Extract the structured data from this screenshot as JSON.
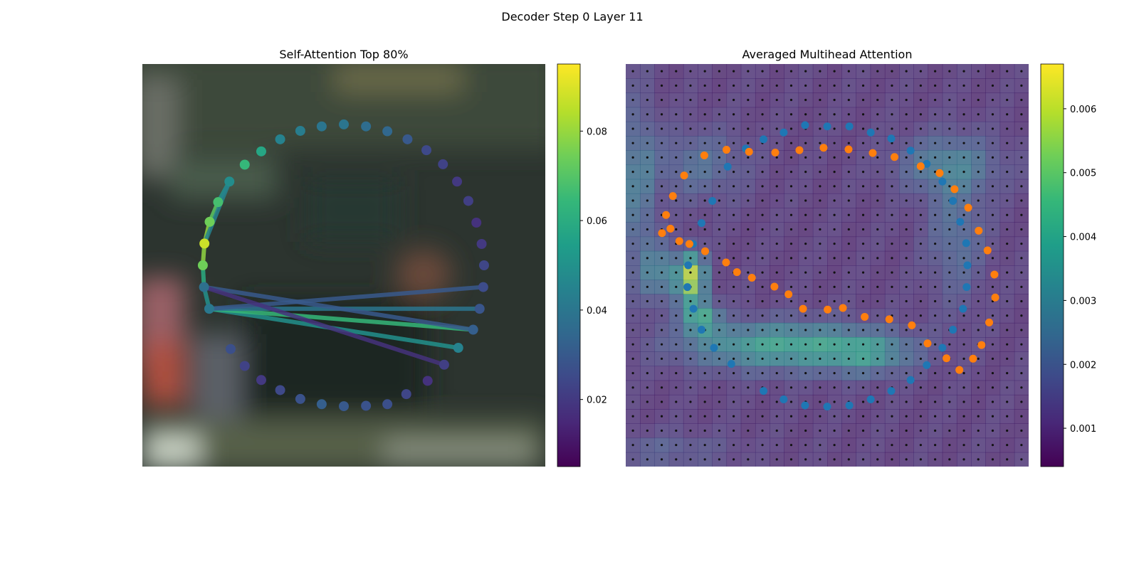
{
  "figure": {
    "suptitle": "Decoder Step 0 Layer 11"
  },
  "colors": {
    "viridis": [
      "#440154",
      "#482878",
      "#3e4989",
      "#31688e",
      "#26828e",
      "#1f9e89",
      "#35b779",
      "#6ece58",
      "#b5de2b",
      "#fde725"
    ],
    "blue_points": "#1f77b4",
    "orange_points": "#ff7f0e",
    "grid_dots": "#111111"
  },
  "chart_data": [
    {
      "type": "scatter",
      "title": "Self-Attention Top 80%",
      "background": "blurred photo",
      "axes_visible": false,
      "colorbar": {
        "vmin": 0.005,
        "vmax": 0.095,
        "ticks": [
          "0.02",
          "0.04",
          "0.06",
          "0.08"
        ],
        "tick_values": [
          0.02,
          0.04,
          0.06,
          0.08
        ]
      },
      "points": [
        {
          "x": 0.5,
          "y": 0.85,
          "v": 0.04
        },
        {
          "x": 0.555,
          "y": 0.845,
          "v": 0.037
        },
        {
          "x": 0.608,
          "y": 0.833,
          "v": 0.035
        },
        {
          "x": 0.658,
          "y": 0.813,
          "v": 0.03
        },
        {
          "x": 0.705,
          "y": 0.786,
          "v": 0.025
        },
        {
          "x": 0.746,
          "y": 0.751,
          "v": 0.023
        },
        {
          "x": 0.781,
          "y": 0.708,
          "v": 0.02
        },
        {
          "x": 0.809,
          "y": 0.66,
          "v": 0.022
        },
        {
          "x": 0.829,
          "y": 0.606,
          "v": 0.018
        },
        {
          "x": 0.842,
          "y": 0.553,
          "v": 0.02
        },
        {
          "x": 0.848,
          "y": 0.5,
          "v": 0.024
        },
        {
          "x": 0.846,
          "y": 0.446,
          "v": 0.026
        },
        {
          "x": 0.837,
          "y": 0.392,
          "v": 0.029
        },
        {
          "x": 0.821,
          "y": 0.34,
          "v": 0.032
        },
        {
          "x": 0.784,
          "y": 0.295,
          "v": 0.045
        },
        {
          "x": 0.749,
          "y": 0.253,
          "v": 0.022
        },
        {
          "x": 0.708,
          "y": 0.213,
          "v": 0.018
        },
        {
          "x": 0.655,
          "y": 0.18,
          "v": 0.024
        },
        {
          "x": 0.608,
          "y": 0.155,
          "v": 0.027
        },
        {
          "x": 0.555,
          "y": 0.151,
          "v": 0.028
        },
        {
          "x": 0.5,
          "y": 0.15,
          "v": 0.03
        },
        {
          "x": 0.445,
          "y": 0.155,
          "v": 0.032
        },
        {
          "x": 0.392,
          "y": 0.168,
          "v": 0.028
        },
        {
          "x": 0.342,
          "y": 0.19,
          "v": 0.025
        },
        {
          "x": 0.295,
          "y": 0.215,
          "v": 0.02
        },
        {
          "x": 0.254,
          "y": 0.25,
          "v": 0.023
        },
        {
          "x": 0.219,
          "y": 0.292,
          "v": 0.027
        },
        {
          "x": 0.166,
          "y": 0.392,
          "v": 0.041
        },
        {
          "x": 0.153,
          "y": 0.446,
          "v": 0.038
        },
        {
          "x": 0.15,
          "y": 0.5,
          "v": 0.075
        },
        {
          "x": 0.154,
          "y": 0.554,
          "v": 0.088
        },
        {
          "x": 0.167,
          "y": 0.608,
          "v": 0.075
        },
        {
          "x": 0.188,
          "y": 0.657,
          "v": 0.068
        },
        {
          "x": 0.216,
          "y": 0.708,
          "v": 0.049
        },
        {
          "x": 0.254,
          "y": 0.75,
          "v": 0.065
        },
        {
          "x": 0.295,
          "y": 0.783,
          "v": 0.058
        },
        {
          "x": 0.342,
          "y": 0.813,
          "v": 0.045
        },
        {
          "x": 0.392,
          "y": 0.834,
          "v": 0.043
        },
        {
          "x": 0.445,
          "y": 0.845,
          "v": 0.04
        }
      ],
      "edges": [
        {
          "from": 27,
          "to": 14,
          "v": 0.05
        },
        {
          "from": 27,
          "to": 13,
          "v": 0.065
        },
        {
          "from": 27,
          "to": 12,
          "v": 0.04
        },
        {
          "from": 27,
          "to": 11,
          "v": 0.03
        },
        {
          "from": 28,
          "to": 13,
          "v": 0.03
        },
        {
          "from": 28,
          "to": 15,
          "v": 0.018
        },
        {
          "from": 27,
          "to": 28,
          "v": 0.05
        },
        {
          "from": 28,
          "to": 29,
          "v": 0.06
        },
        {
          "from": 29,
          "to": 30,
          "v": 0.08
        },
        {
          "from": 30,
          "to": 31,
          "v": 0.08
        },
        {
          "from": 31,
          "to": 32,
          "v": 0.072
        },
        {
          "from": 32,
          "to": 33,
          "v": 0.05
        },
        {
          "from": 30,
          "to": 33,
          "v": 0.045
        }
      ]
    },
    {
      "type": "heatmap",
      "title": "Averaged Multihead Attention",
      "axes_visible": false,
      "colorbar": {
        "vmin": 0.0004,
        "vmax": 0.0067,
        "ticks": [
          "0.001",
          "0.002",
          "0.003",
          "0.004",
          "0.005",
          "0.006"
        ],
        "tick_values": [
          0.001,
          0.002,
          0.003,
          0.004,
          0.005,
          0.006
        ]
      },
      "grid": {
        "rows": 28,
        "cols": 28
      },
      "hotspots": [
        {
          "x": 0.16,
          "y": 0.53,
          "sx": 0.025,
          "sy": 0.04,
          "v": 0.0062
        },
        {
          "x": 0.185,
          "y": 0.63,
          "sx": 0.03,
          "sy": 0.03,
          "v": 0.0042
        },
        {
          "x": 0.38,
          "y": 0.7,
          "sx": 0.16,
          "sy": 0.04,
          "v": 0.004
        },
        {
          "x": 0.6,
          "y": 0.72,
          "sx": 0.08,
          "sy": 0.035,
          "v": 0.003
        },
        {
          "x": 0.08,
          "y": 0.52,
          "sx": 0.03,
          "sy": 0.05,
          "v": 0.0028
        },
        {
          "x": 0.82,
          "y": 0.42,
          "sx": 0.05,
          "sy": 0.12,
          "v": 0.0022
        },
        {
          "x": 0.8,
          "y": 0.25,
          "sx": 0.09,
          "sy": 0.05,
          "v": 0.0026
        },
        {
          "x": 0.18,
          "y": 0.25,
          "sx": 0.08,
          "sy": 0.06,
          "v": 0.0022
        },
        {
          "x": 0.09,
          "y": 0.96,
          "sx": 0.12,
          "sy": 0.03,
          "v": 0.0018
        },
        {
          "x": 0.03,
          "y": 0.3,
          "sx": 0.03,
          "sy": 0.15,
          "v": 0.0026
        }
      ],
      "blue_points": [
        {
          "x": 0.5,
          "y": 0.845
        },
        {
          "x": 0.555,
          "y": 0.845
        },
        {
          "x": 0.608,
          "y": 0.83
        },
        {
          "x": 0.659,
          "y": 0.815
        },
        {
          "x": 0.707,
          "y": 0.785
        },
        {
          "x": 0.747,
          "y": 0.752
        },
        {
          "x": 0.786,
          "y": 0.708
        },
        {
          "x": 0.812,
          "y": 0.66
        },
        {
          "x": 0.83,
          "y": 0.608
        },
        {
          "x": 0.845,
          "y": 0.555
        },
        {
          "x": 0.848,
          "y": 0.5
        },
        {
          "x": 0.846,
          "y": 0.446
        },
        {
          "x": 0.837,
          "y": 0.392
        },
        {
          "x": 0.812,
          "y": 0.34
        },
        {
          "x": 0.786,
          "y": 0.295
        },
        {
          "x": 0.747,
          "y": 0.252
        },
        {
          "x": 0.707,
          "y": 0.215
        },
        {
          "x": 0.659,
          "y": 0.188
        },
        {
          "x": 0.608,
          "y": 0.167
        },
        {
          "x": 0.555,
          "y": 0.152
        },
        {
          "x": 0.5,
          "y": 0.149
        },
        {
          "x": 0.445,
          "y": 0.152
        },
        {
          "x": 0.392,
          "y": 0.167
        },
        {
          "x": 0.342,
          "y": 0.188
        },
        {
          "x": 0.262,
          "y": 0.255
        },
        {
          "x": 0.219,
          "y": 0.295
        },
        {
          "x": 0.188,
          "y": 0.34
        },
        {
          "x": 0.168,
          "y": 0.392
        },
        {
          "x": 0.153,
          "y": 0.446
        },
        {
          "x": 0.155,
          "y": 0.5
        },
        {
          "x": 0.167,
          "y": 0.553
        },
        {
          "x": 0.188,
          "y": 0.605
        },
        {
          "x": 0.215,
          "y": 0.66
        },
        {
          "x": 0.253,
          "y": 0.745
        },
        {
          "x": 0.298,
          "y": 0.79
        },
        {
          "x": 0.342,
          "y": 0.813
        },
        {
          "x": 0.392,
          "y": 0.83
        },
        {
          "x": 0.445,
          "y": 0.848
        }
      ],
      "orange_points": [
        {
          "x": 0.09,
          "y": 0.58
        },
        {
          "x": 0.1,
          "y": 0.625
        },
        {
          "x": 0.117,
          "y": 0.672
        },
        {
          "x": 0.145,
          "y": 0.723
        },
        {
          "x": 0.195,
          "y": 0.773
        },
        {
          "x": 0.25,
          "y": 0.787
        },
        {
          "x": 0.306,
          "y": 0.782
        },
        {
          "x": 0.371,
          "y": 0.78
        },
        {
          "x": 0.431,
          "y": 0.786
        },
        {
          "x": 0.491,
          "y": 0.792
        },
        {
          "x": 0.553,
          "y": 0.788
        },
        {
          "x": 0.613,
          "y": 0.779
        },
        {
          "x": 0.667,
          "y": 0.769
        },
        {
          "x": 0.732,
          "y": 0.746
        },
        {
          "x": 0.779,
          "y": 0.729
        },
        {
          "x": 0.816,
          "y": 0.689
        },
        {
          "x": 0.85,
          "y": 0.643
        },
        {
          "x": 0.876,
          "y": 0.586
        },
        {
          "x": 0.898,
          "y": 0.537
        },
        {
          "x": 0.915,
          "y": 0.477
        },
        {
          "x": 0.917,
          "y": 0.42
        },
        {
          "x": 0.902,
          "y": 0.358
        },
        {
          "x": 0.883,
          "y": 0.302
        },
        {
          "x": 0.862,
          "y": 0.268
        },
        {
          "x": 0.828,
          "y": 0.24
        },
        {
          "x": 0.796,
          "y": 0.269
        },
        {
          "x": 0.749,
          "y": 0.306
        },
        {
          "x": 0.71,
          "y": 0.351
        },
        {
          "x": 0.654,
          "y": 0.366
        },
        {
          "x": 0.593,
          "y": 0.372
        },
        {
          "x": 0.539,
          "y": 0.394
        },
        {
          "x": 0.501,
          "y": 0.39
        },
        {
          "x": 0.44,
          "y": 0.392
        },
        {
          "x": 0.404,
          "y": 0.428
        },
        {
          "x": 0.369,
          "y": 0.447
        },
        {
          "x": 0.313,
          "y": 0.469
        },
        {
          "x": 0.276,
          "y": 0.483
        },
        {
          "x": 0.249,
          "y": 0.507
        },
        {
          "x": 0.197,
          "y": 0.535
        },
        {
          "x": 0.158,
          "y": 0.553
        },
        {
          "x": 0.133,
          "y": 0.56
        },
        {
          "x": 0.111,
          "y": 0.591
        }
      ]
    }
  ]
}
